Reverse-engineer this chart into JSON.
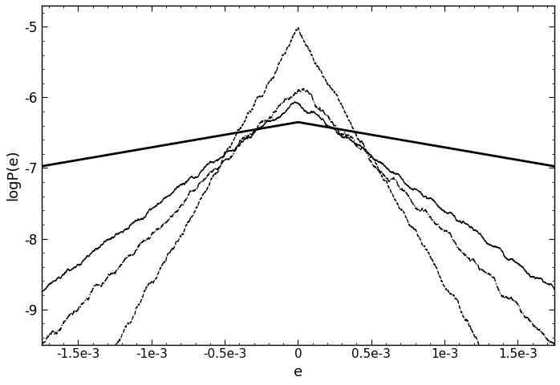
{
  "title": "",
  "xlabel": "e",
  "ylabel": "logP(e)",
  "xlim": [
    -0.00175,
    0.00175
  ],
  "ylim": [
    -9.5,
    -4.7
  ],
  "yticks": [
    -9,
    -8,
    -7,
    -6,
    -5
  ],
  "xticks": [
    -0.0015,
    -0.001,
    -0.0005,
    0,
    0.0005,
    0.001,
    0.0015
  ],
  "xticklabels": [
    "-1.5e-3",
    "-1e-3",
    "-0.5e-3",
    "0",
    "0.5e-3",
    "1e-3",
    "1.5e-3"
  ],
  "background_color": "#ffffff",
  "curves": [
    {
      "style": "solid",
      "lw": 2.0,
      "scale": 0.0028,
      "peak": -6.35,
      "noise_amp": 0.0,
      "seed": 0
    },
    {
      "style": "solid",
      "lw": 1.0,
      "scale": 0.00065,
      "peak": -6.05,
      "noise_amp": 0.12,
      "seed": 5
    },
    {
      "style": "--",
      "lw": 1.0,
      "scale": 0.00028,
      "peak": -5.05,
      "noise_amp": 0.18,
      "seed": 10
    },
    {
      "style": "-.",
      "lw": 1.0,
      "scale": 0.00048,
      "peak": -5.85,
      "noise_amp": 0.18,
      "seed": 20
    }
  ]
}
